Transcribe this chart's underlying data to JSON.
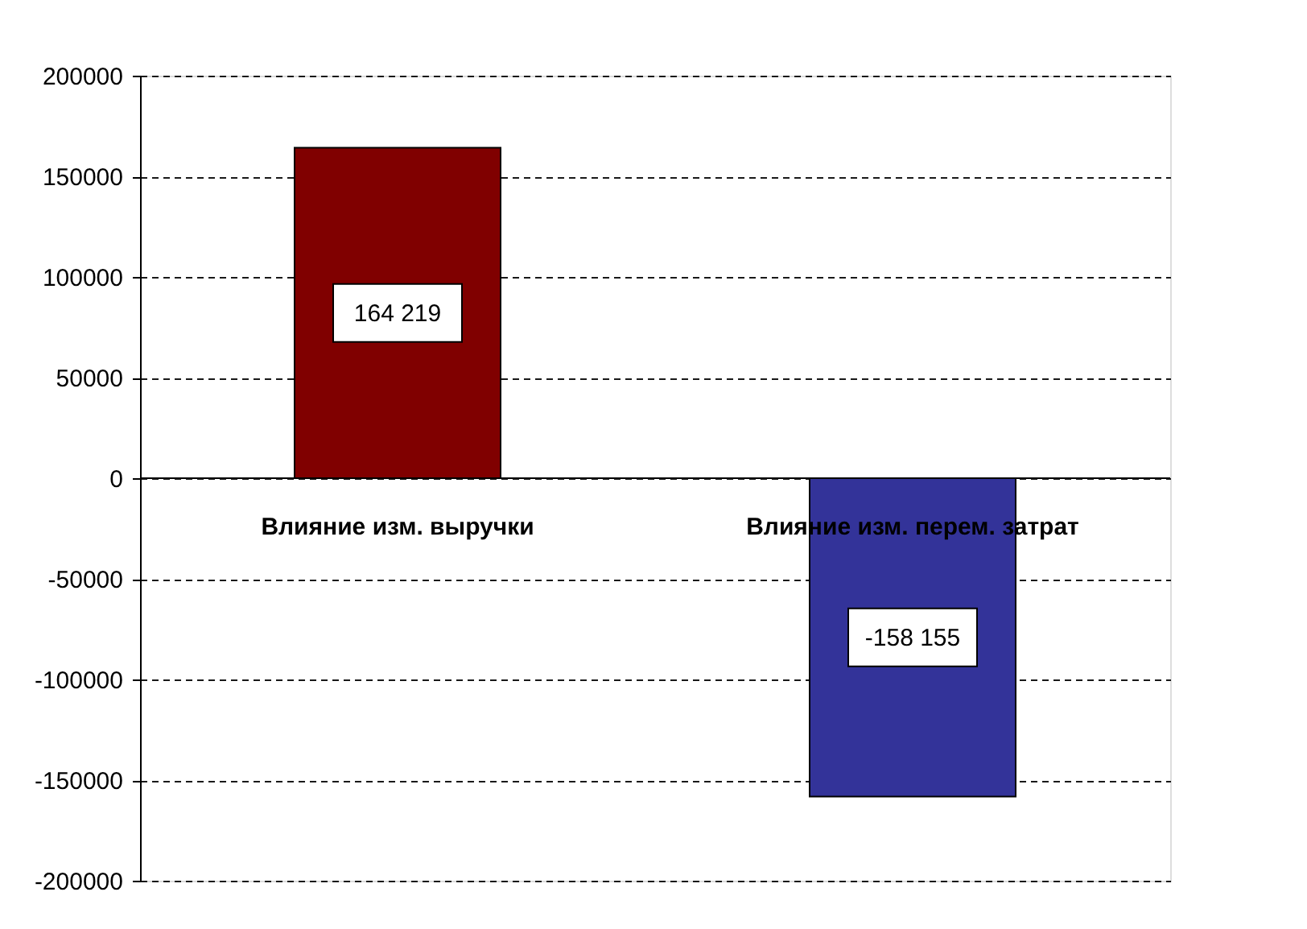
{
  "chart_data": {
    "type": "bar",
    "categories": [
      "Влияние изм. выручки",
      "Влияние изм. перем. затрат"
    ],
    "values": [
      164219,
      -158155
    ],
    "colors": [
      "#800000",
      "#333399"
    ],
    "value_labels": [
      "164 219",
      "-158 155"
    ],
    "ylim": [
      -200000,
      200000
    ],
    "yticks": [
      -200000,
      -150000,
      -100000,
      -50000,
      0,
      50000,
      100000,
      150000,
      200000
    ],
    "grid": "y"
  }
}
